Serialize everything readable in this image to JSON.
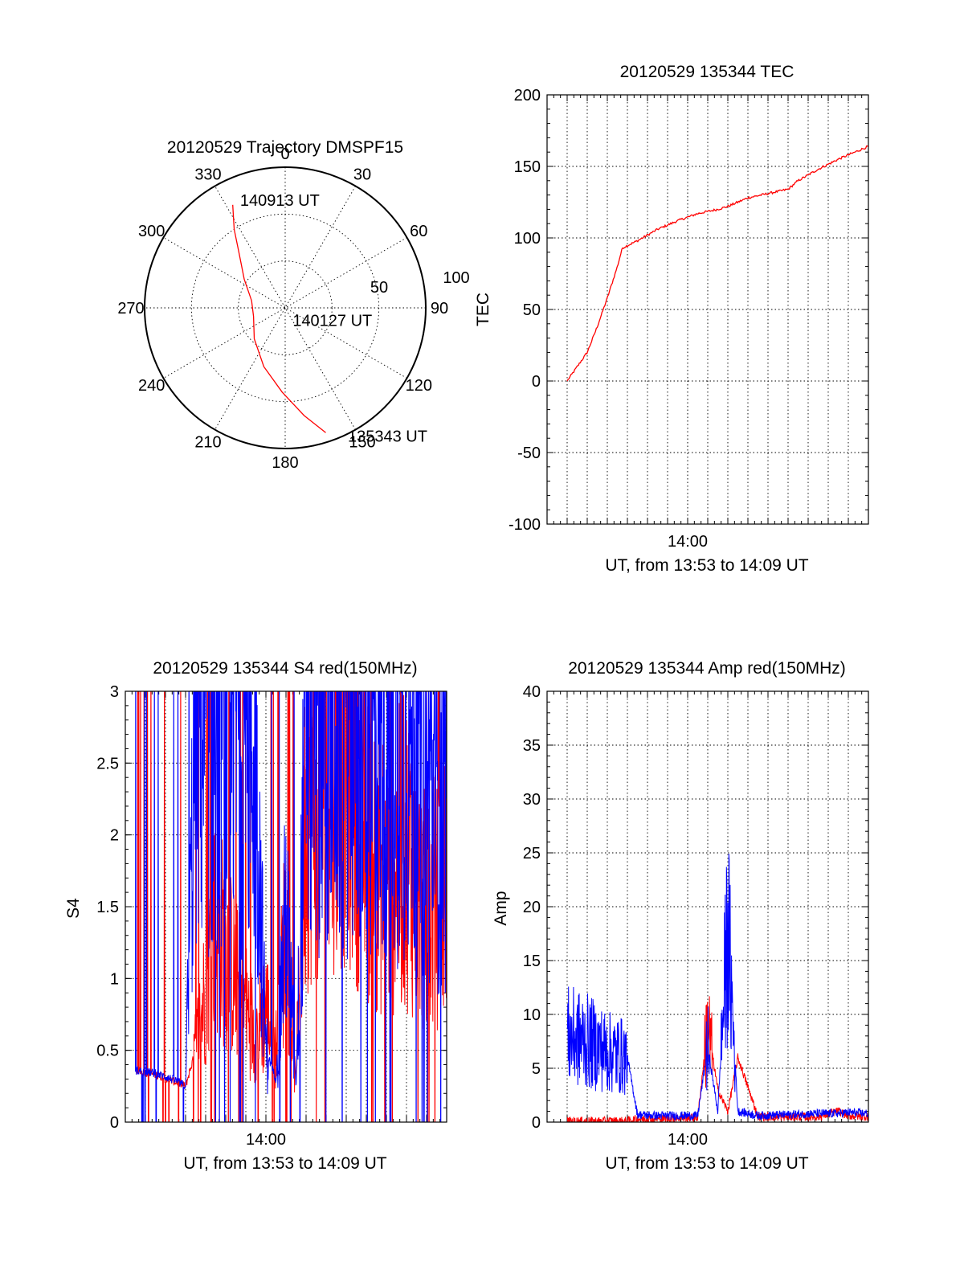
{
  "colors": {
    "red": "#ff0000",
    "blue": "#0000ff",
    "axis": "#000000",
    "background": "#ffffff"
  },
  "chart_data": [
    {
      "type": "polar",
      "title": "20120529 Trajectory DMSPF15",
      "angle_labels": [
        "0",
        "30",
        "60",
        "90",
        "120",
        "150",
        "180",
        "210",
        "240",
        "270",
        "300",
        "330"
      ],
      "radial_labels": [
        "50",
        "100"
      ],
      "grid": true,
      "series": [
        {
          "color": "red",
          "points": [
            {
              "azimuth": 162,
              "elevation": 6
            },
            {
              "azimuth": 170,
              "elevation": 20
            },
            {
              "azimuth": 182,
              "elevation": 36
            },
            {
              "azimuth": 200,
              "elevation": 50
            },
            {
              "azimuth": 225,
              "elevation": 62
            },
            {
              "azimuth": 255,
              "elevation": 69
            },
            {
              "azimuth": 282,
              "elevation": 68
            },
            {
              "azimuth": 305,
              "elevation": 58
            },
            {
              "azimuth": 320,
              "elevation": 44
            },
            {
              "azimuth": 327,
              "elevation": 30
            },
            {
              "azimuth": 333,
              "elevation": 16
            }
          ]
        }
      ],
      "annotations": [
        {
          "text": "140913 UT",
          "azimuth": 336,
          "elevation": 14
        },
        {
          "text": "140127 UT",
          "azimuth": 160,
          "elevation": 82
        },
        {
          "text": "135343 UT",
          "azimuth": 155,
          "elevation": 0
        }
      ]
    },
    {
      "type": "line",
      "title": "20120529 135344 TEC",
      "ylabel": "TEC",
      "xlabel": "UT, from 13:53 to 14:09 UT",
      "xlim": [
        "13:53",
        "14:09"
      ],
      "ylim": [
        -100,
        200
      ],
      "xticks": [
        "14:00"
      ],
      "yticks": [
        "-100",
        "-50",
        "0",
        "50",
        "100",
        "150",
        "200"
      ],
      "grid": true,
      "series": [
        {
          "color": "red",
          "x": [
            "13:54:00",
            "13:54:30",
            "13:55:00",
            "13:55:30",
            "13:56:00",
            "13:56:30",
            "13:56:45",
            "13:57:30",
            "13:58:30",
            "13:59:30",
            "14:00:30",
            "14:01:30",
            "14:02:00",
            "14:03:00",
            "14:04:00",
            "14:05:00",
            "14:05:30",
            "14:06:30",
            "14:07:30",
            "14:08:30",
            "14:09:00"
          ],
          "y": [
            0,
            10,
            20,
            38,
            58,
            80,
            93,
            98,
            106,
            112,
            117,
            120,
            122,
            128,
            131,
            134,
            140,
            148,
            155,
            161,
            164
          ]
        }
      ]
    },
    {
      "type": "line",
      "title": "20120529 135344 S4 red(150MHz)",
      "ylabel": "S4",
      "xlabel": "UT, from 13:53 to 14:09 UT",
      "xlim": [
        "13:53",
        "14:09"
      ],
      "ylim": [
        0,
        3
      ],
      "xticks": [
        "14:00"
      ],
      "yticks": [
        "0",
        "0.5",
        "1",
        "1.5",
        "2",
        "2.5",
        "3"
      ],
      "grid": true,
      "series": [
        {
          "color": "red",
          "noisy": true,
          "x": [
            "13:53:30",
            "13:54:30",
            "13:55:30",
            "13:56:00",
            "13:56:30",
            "13:57:30",
            "13:58:30",
            "13:59:30",
            "14:00:00",
            "14:00:30",
            "14:01:00",
            "14:01:30",
            "14:02:00",
            "14:03:00",
            "14:04:00",
            "14:05:00",
            "14:06:00",
            "14:07:00",
            "14:08:00",
            "14:09:00"
          ],
          "y": [
            0.36,
            0.33,
            0.28,
            0.25,
            0.5,
            1.4,
            1.0,
            0.6,
            0.8,
            0.5,
            1.4,
            0.3,
            2.2,
            2.5,
            2.6,
            2.0,
            1.7,
            1.9,
            1.4,
            1.7
          ]
        },
        {
          "color": "blue",
          "noisy": true,
          "x": [
            "13:53:30",
            "13:54:30",
            "13:55:30",
            "13:56:00",
            "13:56:30",
            "13:57:30",
            "13:58:30",
            "13:59:30",
            "14:00:00",
            "14:00:30",
            "14:01:00",
            "14:01:30",
            "14:02:00",
            "14:03:00",
            "14:04:00",
            "14:05:00",
            "14:06:00",
            "14:07:00",
            "14:08:00",
            "14:09:00"
          ],
          "y": [
            0.36,
            0.34,
            0.29,
            0.25,
            2.8,
            2.7,
            2.9,
            2.5,
            0.5,
            0.3,
            1.5,
            0.25,
            2.7,
            2.9,
            2.8,
            2.7,
            2.6,
            2.7,
            2.3,
            2.1
          ]
        }
      ]
    },
    {
      "type": "line",
      "title": "20120529 135344 Amp red(150MHz)",
      "ylabel": "Amp",
      "xlabel": "UT, from 13:53 to 14:09 UT",
      "xlim": [
        "13:53",
        "14:09"
      ],
      "ylim": [
        0,
        40
      ],
      "xticks": [
        "14:00"
      ],
      "yticks": [
        "0",
        "5",
        "10",
        "15",
        "20",
        "25",
        "30",
        "35",
        "40"
      ],
      "grid": true,
      "series": [
        {
          "color": "red",
          "noisy": true,
          "x": [
            "13:54:00",
            "13:55:00",
            "13:56:00",
            "13:57:00",
            "13:57:30",
            "13:58:30",
            "13:59:30",
            "14:00:30",
            "14:01:00",
            "14:01:30",
            "14:02:00",
            "14:02:30",
            "14:03:30",
            "14:05:00",
            "14:06:30",
            "14:07:30",
            "14:08:00",
            "14:09:00"
          ],
          "y": [
            0.1,
            0.1,
            0.1,
            0.1,
            0.3,
            0.3,
            0.4,
            0.4,
            9.0,
            3.0,
            1.0,
            6.0,
            0.5,
            0.5,
            0.5,
            1.0,
            0.6,
            0.5
          ]
        },
        {
          "color": "blue",
          "noisy": true,
          "x": [
            "13:54:00",
            "13:55:00",
            "13:56:00",
            "13:57:00",
            "13:57:30",
            "13:58:30",
            "13:59:30",
            "14:00:30",
            "14:01:00",
            "14:01:30",
            "14:02:00",
            "14:02:30",
            "14:03:30",
            "14:05:00",
            "14:06:30",
            "14:07:30",
            "14:08:00",
            "14:09:00"
          ],
          "y": [
            8.0,
            7.5,
            6.5,
            6.0,
            0.7,
            0.6,
            0.6,
            0.6,
            7.0,
            1.0,
            18.0,
            1.0,
            0.6,
            0.7,
            0.8,
            0.8,
            0.9,
            0.8
          ]
        }
      ]
    }
  ]
}
